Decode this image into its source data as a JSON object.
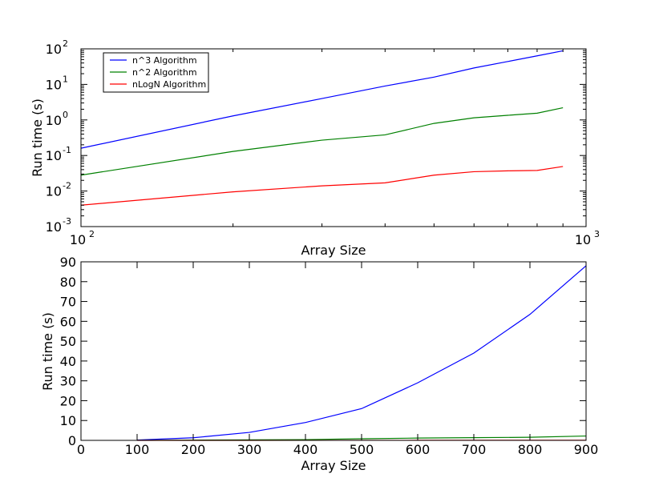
{
  "figure": {
    "background": "#ffffff"
  },
  "chart_data": [
    {
      "type": "line",
      "title": "",
      "xlabel": "Array Size",
      "ylabel": "Run time (s)",
      "xscale": "log",
      "yscale": "log",
      "xlim": [
        100,
        1000
      ],
      "ylim": [
        0.001,
        100
      ],
      "grid": false,
      "legend": {
        "placement": "top-left",
        "entries": [
          "n^3 Algorithm",
          "n^2 Algorithm",
          "nLogN Algorithm"
        ]
      },
      "x_ticks": [
        {
          "value": 100,
          "base": "10",
          "exp": "2"
        },
        {
          "value": 1000,
          "base": "10",
          "exp": "3"
        }
      ],
      "y_ticks": [
        {
          "value": 0.001,
          "base": "10",
          "exp": "-3"
        },
        {
          "value": 0.01,
          "base": "10",
          "exp": "-2"
        },
        {
          "value": 0.1,
          "base": "10",
          "exp": "-1"
        },
        {
          "value": 1,
          "base": "10",
          "exp": "0"
        },
        {
          "value": 10,
          "base": "10",
          "exp": "1"
        },
        {
          "value": 100,
          "base": "10",
          "exp": "2"
        }
      ],
      "x_minor_ticks": [
        200,
        300,
        400,
        500,
        600,
        700,
        800,
        900
      ],
      "x": [
        100,
        200,
        300,
        400,
        500,
        600,
        700,
        800,
        900
      ],
      "series": [
        {
          "name": "n^3 Algorithm",
          "color": "#0000ff",
          "values": [
            0.16,
            1.3,
            4.0,
            9.0,
            16.0,
            29.0,
            44.0,
            63.5,
            88.0
          ]
        },
        {
          "name": "n^2 Algorithm",
          "color": "#008000",
          "values": [
            0.028,
            0.13,
            0.27,
            0.38,
            0.8,
            1.15,
            1.35,
            1.55,
            2.2
          ]
        },
        {
          "name": "nLogN Algorithm",
          "color": "#ff0000",
          "values": [
            0.004,
            0.0095,
            0.014,
            0.017,
            0.028,
            0.035,
            0.037,
            0.038,
            0.049
          ]
        }
      ]
    },
    {
      "type": "line",
      "title": "",
      "xlabel": "Array Size",
      "ylabel": "Run time (s)",
      "xlim": [
        0,
        900
      ],
      "ylim": [
        0,
        90
      ],
      "grid": false,
      "x_ticks": [
        {
          "value": 0,
          "label": "0"
        },
        {
          "value": 100,
          "label": "100"
        },
        {
          "value": 200,
          "label": "200"
        },
        {
          "value": 300,
          "label": "300"
        },
        {
          "value": 400,
          "label": "400"
        },
        {
          "value": 500,
          "label": "500"
        },
        {
          "value": 600,
          "label": "600"
        },
        {
          "value": 700,
          "label": "700"
        },
        {
          "value": 800,
          "label": "800"
        },
        {
          "value": 900,
          "label": "900"
        }
      ],
      "y_ticks": [
        {
          "value": 0,
          "label": "0"
        },
        {
          "value": 10,
          "label": "10"
        },
        {
          "value": 20,
          "label": "20"
        },
        {
          "value": 30,
          "label": "30"
        },
        {
          "value": 40,
          "label": "40"
        },
        {
          "value": 50,
          "label": "50"
        },
        {
          "value": 60,
          "label": "60"
        },
        {
          "value": 70,
          "label": "70"
        },
        {
          "value": 80,
          "label": "80"
        },
        {
          "value": 90,
          "label": "90"
        }
      ],
      "x": [
        100,
        200,
        300,
        400,
        500,
        600,
        700,
        800,
        900
      ],
      "series": [
        {
          "color": "#0000ff",
          "values": [
            0.16,
            1.3,
            4.0,
            9.0,
            16.0,
            29.0,
            44.0,
            63.5,
            88.0
          ]
        },
        {
          "color": "#008000",
          "values": [
            0.028,
            0.13,
            0.27,
            0.38,
            0.8,
            1.15,
            1.35,
            1.55,
            2.2
          ]
        },
        {
          "color": "#ff0000",
          "values": [
            0.004,
            0.0095,
            0.014,
            0.017,
            0.028,
            0.035,
            0.037,
            0.038,
            0.049
          ]
        }
      ]
    }
  ]
}
